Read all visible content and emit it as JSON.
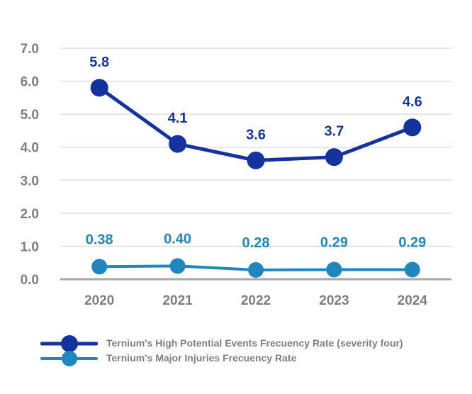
{
  "chart_data": {
    "type": "line",
    "categories": [
      "2020",
      "2021",
      "2022",
      "2023",
      "2024"
    ],
    "series": [
      {
        "name": "Ternium's High Potential Events Frecuency Rate (severity four)",
        "values": [
          5.8,
          4.1,
          3.6,
          3.7,
          4.6
        ],
        "labels": [
          "5.8",
          "4.1",
          "3.6",
          "3.7",
          "4.6"
        ],
        "color": "#14339F"
      },
      {
        "name": "Ternium's Major Injuries Frecuency Rate",
        "values": [
          0.38,
          0.4,
          0.28,
          0.29,
          0.29
        ],
        "labels": [
          "0.38",
          "0.40",
          "0.28",
          "0.29",
          "0.29"
        ],
        "color": "#1F87BC"
      }
    ],
    "title": "",
    "xlabel": "",
    "ylabel": "",
    "ylim": [
      0,
      7
    ],
    "yticks": [
      0,
      1,
      2,
      3,
      4,
      5,
      6,
      7
    ],
    "ytick_labels": [
      "0.0",
      "1.0",
      "2.0",
      "3.0",
      "4.0",
      "5.0",
      "6.0",
      "7.0"
    ],
    "grid": true,
    "legend_position": "bottom"
  },
  "colors": {
    "background": "#FFFFFF",
    "grid_line": "#D9D9D9",
    "zero_line": "#A6A6A6",
    "axis_text": "#7F7F7F",
    "legend_text": "#7F7F7F",
    "series_high_potential": "#14339F",
    "series_major_injuries": "#1F87BC"
  }
}
